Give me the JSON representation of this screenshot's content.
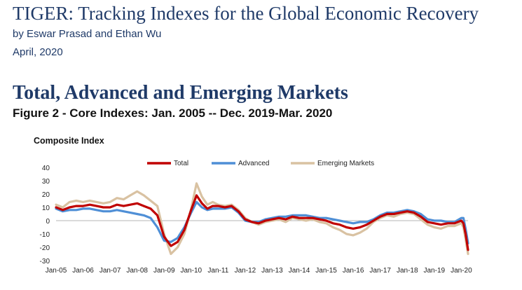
{
  "header": {
    "title": "TIGER: Tracking Indexes for the Global Economic Recovery",
    "authors": "by Eswar Prasad and Ethan Wu",
    "date": "April, 2020"
  },
  "section": {
    "title": "Total, Advanced and Emerging Markets",
    "figure_caption": "Figure 2 - Core Indexes: Jan. 2005 -- Dec. 2019-Mar. 2020"
  },
  "chart_data": {
    "type": "line",
    "title": "Composite Index",
    "xlabel": "",
    "ylabel": "",
    "ylim": [
      -30,
      40
    ],
    "yticks": [
      -30,
      -20,
      -10,
      0,
      10,
      20,
      30,
      40
    ],
    "xrange": [
      2005.0,
      2020.25
    ],
    "xticks": [
      "Jan-05",
      "Jan-06",
      "Jan-07",
      "Jan-08",
      "Jan-09",
      "Jan-10",
      "Jan-11",
      "Jan-12",
      "Jan-13",
      "Jan-14",
      "Jan-15",
      "Jan-16",
      "Jan-17",
      "Jan-18",
      "Jan-19",
      "Jan-20"
    ],
    "grid": false,
    "legend_position": "top",
    "series": [
      {
        "name": "Total",
        "color": "#c00000",
        "points": [
          [
            2005.0,
            10
          ],
          [
            2005.25,
            8
          ],
          [
            2005.5,
            10
          ],
          [
            2005.75,
            11
          ],
          [
            2006.0,
            11
          ],
          [
            2006.25,
            12
          ],
          [
            2006.5,
            11
          ],
          [
            2006.75,
            10
          ],
          [
            2007.0,
            10
          ],
          [
            2007.25,
            12
          ],
          [
            2007.5,
            11
          ],
          [
            2007.75,
            12
          ],
          [
            2008.0,
            13
          ],
          [
            2008.25,
            11
          ],
          [
            2008.5,
            9
          ],
          [
            2008.75,
            4
          ],
          [
            2009.0,
            -12
          ],
          [
            2009.25,
            -19
          ],
          [
            2009.5,
            -16
          ],
          [
            2009.75,
            -7
          ],
          [
            2010.0,
            8
          ],
          [
            2010.2,
            19
          ],
          [
            2010.4,
            13
          ],
          [
            2010.6,
            9
          ],
          [
            2010.8,
            11
          ],
          [
            2011.0,
            11
          ],
          [
            2011.25,
            10
          ],
          [
            2011.5,
            11
          ],
          [
            2011.75,
            7
          ],
          [
            2012.0,
            1
          ],
          [
            2012.25,
            -1
          ],
          [
            2012.5,
            -2
          ],
          [
            2012.75,
            0
          ],
          [
            2013.0,
            1
          ],
          [
            2013.25,
            2
          ],
          [
            2013.5,
            1
          ],
          [
            2013.75,
            3
          ],
          [
            2014.0,
            2
          ],
          [
            2014.25,
            2
          ],
          [
            2014.5,
            2
          ],
          [
            2014.75,
            1
          ],
          [
            2015.0,
            0
          ],
          [
            2015.25,
            -2
          ],
          [
            2015.5,
            -3
          ],
          [
            2015.75,
            -5
          ],
          [
            2016.0,
            -6
          ],
          [
            2016.25,
            -5
          ],
          [
            2016.5,
            -3
          ],
          [
            2016.75,
            0
          ],
          [
            2017.0,
            3
          ],
          [
            2017.25,
            5
          ],
          [
            2017.5,
            5
          ],
          [
            2017.75,
            6
          ],
          [
            2018.0,
            7
          ],
          [
            2018.25,
            6
          ],
          [
            2018.5,
            3
          ],
          [
            2018.75,
            -1
          ],
          [
            2019.0,
            -2
          ],
          [
            2019.25,
            -3
          ],
          [
            2019.5,
            -2
          ],
          [
            2019.75,
            -2
          ],
          [
            2020.0,
            0
          ],
          [
            2020.08,
            -2
          ],
          [
            2020.16,
            -10
          ],
          [
            2020.25,
            -22
          ]
        ]
      },
      {
        "name": "Advanced",
        "color": "#4f8fd6",
        "points": [
          [
            2005.0,
            9
          ],
          [
            2005.25,
            7
          ],
          [
            2005.5,
            8
          ],
          [
            2005.75,
            8
          ],
          [
            2006.0,
            9
          ],
          [
            2006.25,
            9
          ],
          [
            2006.5,
            8
          ],
          [
            2006.75,
            7
          ],
          [
            2007.0,
            7
          ],
          [
            2007.25,
            8
          ],
          [
            2007.5,
            7
          ],
          [
            2007.75,
            6
          ],
          [
            2008.0,
            5
          ],
          [
            2008.25,
            4
          ],
          [
            2008.5,
            2
          ],
          [
            2008.75,
            -5
          ],
          [
            2009.0,
            -15
          ],
          [
            2009.25,
            -16
          ],
          [
            2009.5,
            -13
          ],
          [
            2009.75,
            -5
          ],
          [
            2010.0,
            6
          ],
          [
            2010.2,
            14
          ],
          [
            2010.4,
            10
          ],
          [
            2010.6,
            8
          ],
          [
            2010.8,
            9
          ],
          [
            2011.0,
            9
          ],
          [
            2011.25,
            9
          ],
          [
            2011.5,
            10
          ],
          [
            2011.75,
            6
          ],
          [
            2012.0,
            0
          ],
          [
            2012.25,
            -1
          ],
          [
            2012.5,
            -1
          ],
          [
            2012.75,
            1
          ],
          [
            2013.0,
            2
          ],
          [
            2013.25,
            3
          ],
          [
            2013.5,
            3
          ],
          [
            2013.75,
            4
          ],
          [
            2014.0,
            4
          ],
          [
            2014.25,
            4
          ],
          [
            2014.5,
            3
          ],
          [
            2014.75,
            2
          ],
          [
            2015.0,
            2
          ],
          [
            2015.25,
            1
          ],
          [
            2015.5,
            0
          ],
          [
            2015.75,
            -1
          ],
          [
            2016.0,
            -2
          ],
          [
            2016.25,
            -1
          ],
          [
            2016.5,
            -1
          ],
          [
            2016.75,
            1
          ],
          [
            2017.0,
            4
          ],
          [
            2017.25,
            6
          ],
          [
            2017.5,
            6
          ],
          [
            2017.75,
            7
          ],
          [
            2018.0,
            8
          ],
          [
            2018.25,
            7
          ],
          [
            2018.5,
            5
          ],
          [
            2018.75,
            1
          ],
          [
            2019.0,
            0
          ],
          [
            2019.25,
            0
          ],
          [
            2019.5,
            -1
          ],
          [
            2019.75,
            -1
          ],
          [
            2020.0,
            2
          ],
          [
            2020.08,
            2
          ],
          [
            2020.16,
            -6
          ],
          [
            2020.25,
            -17
          ]
        ]
      },
      {
        "name": "Emerging Markets",
        "color": "#d9c2a2",
        "points": [
          [
            2005.0,
            12
          ],
          [
            2005.25,
            10
          ],
          [
            2005.5,
            14
          ],
          [
            2005.75,
            15
          ],
          [
            2006.0,
            14
          ],
          [
            2006.25,
            15
          ],
          [
            2006.5,
            14
          ],
          [
            2006.75,
            13
          ],
          [
            2007.0,
            14
          ],
          [
            2007.25,
            17
          ],
          [
            2007.5,
            16
          ],
          [
            2007.75,
            19
          ],
          [
            2008.0,
            22
          ],
          [
            2008.25,
            19
          ],
          [
            2008.5,
            15
          ],
          [
            2008.75,
            11
          ],
          [
            2009.0,
            -10
          ],
          [
            2009.25,
            -25
          ],
          [
            2009.5,
            -20
          ],
          [
            2009.75,
            -10
          ],
          [
            2010.0,
            9
          ],
          [
            2010.2,
            28
          ],
          [
            2010.4,
            18
          ],
          [
            2010.6,
            12
          ],
          [
            2010.8,
            14
          ],
          [
            2011.0,
            12
          ],
          [
            2011.25,
            11
          ],
          [
            2011.5,
            12
          ],
          [
            2011.75,
            8
          ],
          [
            2012.0,
            2
          ],
          [
            2012.25,
            -1
          ],
          [
            2012.5,
            -3
          ],
          [
            2012.75,
            -1
          ],
          [
            2013.0,
            0
          ],
          [
            2013.25,
            1
          ],
          [
            2013.5,
            -1
          ],
          [
            2013.75,
            2
          ],
          [
            2014.0,
            1
          ],
          [
            2014.25,
            0
          ],
          [
            2014.5,
            1
          ],
          [
            2014.75,
            -1
          ],
          [
            2015.0,
            -2
          ],
          [
            2015.25,
            -5
          ],
          [
            2015.5,
            -7
          ],
          [
            2015.75,
            -10
          ],
          [
            2016.0,
            -11
          ],
          [
            2016.25,
            -9
          ],
          [
            2016.5,
            -6
          ],
          [
            2016.75,
            -1
          ],
          [
            2017.0,
            2
          ],
          [
            2017.25,
            4
          ],
          [
            2017.5,
            3
          ],
          [
            2017.75,
            5
          ],
          [
            2018.0,
            6
          ],
          [
            2018.25,
            5
          ],
          [
            2018.5,
            1
          ],
          [
            2018.75,
            -3
          ],
          [
            2019.0,
            -5
          ],
          [
            2019.25,
            -6
          ],
          [
            2019.5,
            -4
          ],
          [
            2019.75,
            -4
          ],
          [
            2020.0,
            -2
          ],
          [
            2020.08,
            -5
          ],
          [
            2020.16,
            -14
          ],
          [
            2020.25,
            -25
          ]
        ]
      }
    ]
  }
}
